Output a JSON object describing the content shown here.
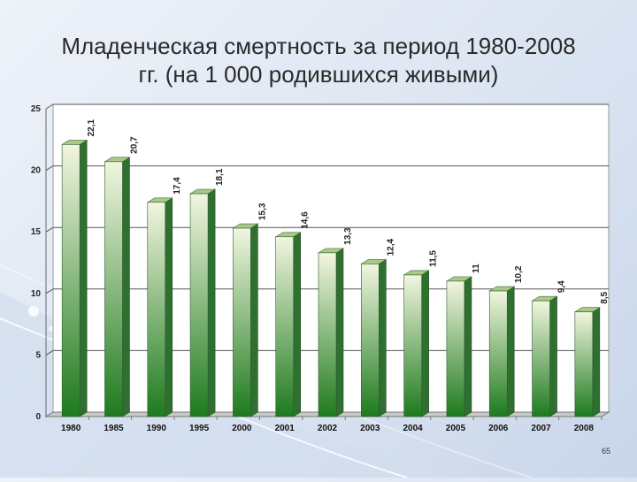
{
  "slide": {
    "title_line1": "Младенческая смертность за период 1980-2008",
    "title_line2": "гг. (на 1 000 родившихся живыми)",
    "page_number": "65"
  },
  "colors": {
    "bar_top": "#f2f6e0",
    "bar_bottom": "#1e7a1e",
    "bar_side": "#2f6f2f",
    "bar_cap": "#a9c88a",
    "grid": "#555555",
    "plot_bg": "#ffffff"
  },
  "chart_data": {
    "type": "bar",
    "categories": [
      "1980",
      "1985",
      "1990",
      "1995",
      "2000",
      "2001",
      "2002",
      "2003",
      "2004",
      "2005",
      "2006",
      "2007",
      "2008"
    ],
    "values": [
      22.1,
      20.7,
      17.4,
      18.1,
      15.3,
      14.6,
      13.3,
      12.4,
      11.5,
      11,
      10.2,
      9.4,
      8.5
    ],
    "value_labels": [
      "22,1",
      "20,7",
      "17,4",
      "18,1",
      "15,3",
      "14,6",
      "13,3",
      "12,4",
      "11,5",
      "11",
      "10,2",
      "9,4",
      "8,5"
    ],
    "y_ticks": [
      0,
      5,
      10,
      15,
      20,
      25
    ],
    "ylim": [
      0,
      25
    ],
    "grid": true,
    "legend": "none",
    "title": "",
    "xlabel": "",
    "ylabel": ""
  }
}
